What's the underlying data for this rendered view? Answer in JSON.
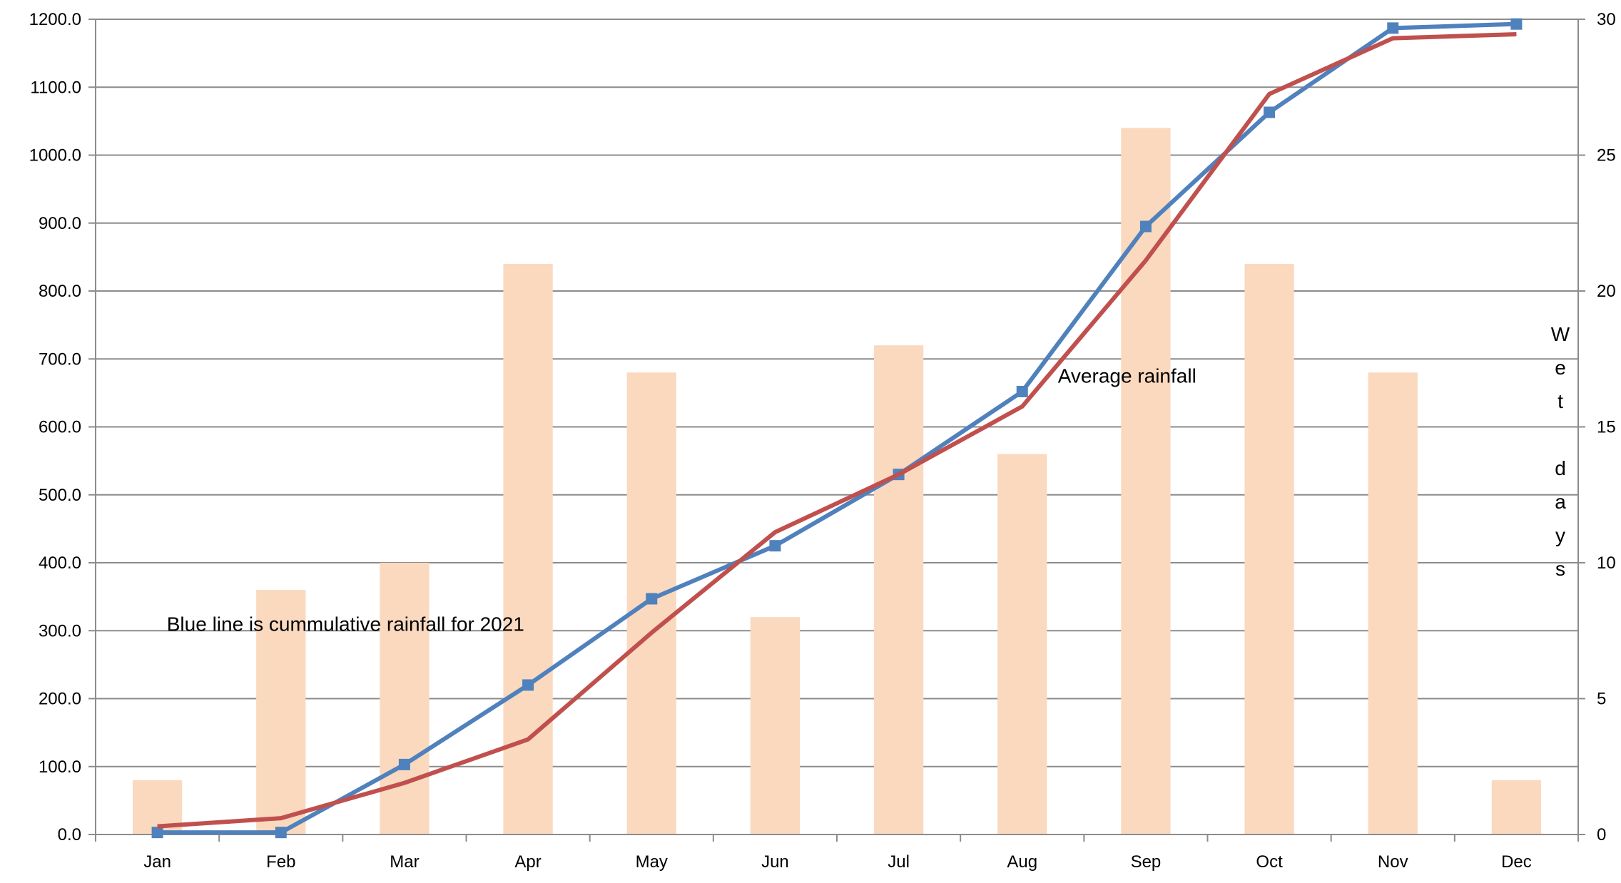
{
  "chart_data": {
    "type": "bar+line",
    "categories": [
      "Jan",
      "Feb",
      "Mar",
      "Apr",
      "May",
      "Jun",
      "Jul",
      "Aug",
      "Sep",
      "Oct",
      "Nov",
      "Dec"
    ],
    "series": [
      {
        "type": "bar",
        "axis": "right",
        "color": "#FAD9BF",
        "values": [
          2,
          9,
          10,
          21,
          17,
          8,
          18,
          14,
          26,
          21,
          17,
          2
        ]
      },
      {
        "type": "line",
        "axis": "left",
        "color": "#4F81BD",
        "marker": "square",
        "values": [
          3,
          3,
          103,
          220,
          347,
          425,
          530,
          652,
          895,
          1063,
          1187,
          1193
        ]
      },
      {
        "type": "line",
        "axis": "left",
        "color": "#C0504D",
        "marker": "none",
        "values": [
          12,
          24,
          76,
          140,
          297,
          445,
          530,
          630,
          845,
          1090,
          1172,
          1178
        ]
      }
    ],
    "y_left": {
      "min": 0,
      "max": 1200,
      "ticks": [
        "0.0",
        "100.0",
        "200.0",
        "300.0",
        "400.0",
        "500.0",
        "600.0",
        "700.0",
        "800.0",
        "900.0",
        "1000.0",
        "1100.0",
        "1200.0"
      ]
    },
    "y_right": {
      "min": 0,
      "max": 30,
      "ticks": [
        "0",
        "5",
        "10",
        "15",
        "20",
        "25",
        "30"
      ],
      "label_chars": [
        "W",
        "e",
        "t",
        "",
        "d",
        "a",
        "y",
        "s"
      ]
    },
    "grid": true,
    "gridline_color": "#8C8C8C",
    "annotations": [
      {
        "text": "Blue line is cummulative rainfall for 2021",
        "anchor": {
          "category": "Feb",
          "value": 300
        }
      },
      {
        "text": "Average rainfall",
        "anchor": {
          "category": "Aug",
          "value": 665
        }
      }
    ]
  }
}
